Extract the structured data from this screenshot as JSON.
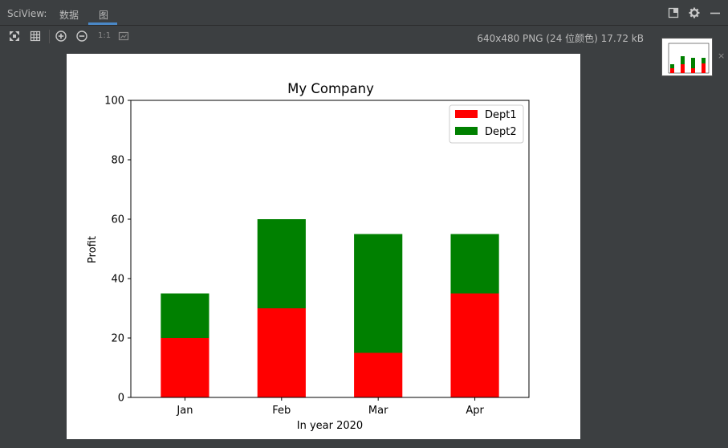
{
  "toolwindow": {
    "title": "SciView:",
    "tabs": [
      {
        "label": "数据",
        "active": false
      },
      {
        "label": "图",
        "active": true
      }
    ]
  },
  "toolbar": {
    "one_to_one_label": "1:1",
    "image_info": "640x480 PNG (24 位颜色) 17.72 kB"
  },
  "icons": {
    "fit": "fit-to-window-icon",
    "grid": "grid-icon",
    "zoom_in": "zoom-in-icon",
    "zoom_out": "zoom-out-icon",
    "actual_size": "actual-size-icon",
    "layout": "layout-icon",
    "settings": "gear-icon",
    "minimize": "minimize-icon",
    "close": "close-icon"
  },
  "thumbnail": {
    "close_glyph": "×"
  },
  "colors": {
    "background": "#3c3f41",
    "accent": "#4a88c7",
    "text": "#bbbbbb",
    "dept1": "#ff0000",
    "dept2": "#008000"
  },
  "chart_data": {
    "type": "bar",
    "stacked": true,
    "title": "My Company",
    "xlabel": "In year 2020",
    "ylabel": "Profit",
    "categories": [
      "Jan",
      "Feb",
      "Mar",
      "Apr"
    ],
    "series": [
      {
        "name": "Dept1",
        "color": "#ff0000",
        "values": [
          20,
          30,
          15,
          35
        ]
      },
      {
        "name": "Dept2",
        "color": "#008000",
        "values": [
          15,
          30,
          40,
          20
        ]
      }
    ],
    "ylim": [
      0,
      100
    ],
    "yticks": [
      0,
      20,
      40,
      60,
      80,
      100
    ],
    "grid": false,
    "legend": "top-right"
  }
}
